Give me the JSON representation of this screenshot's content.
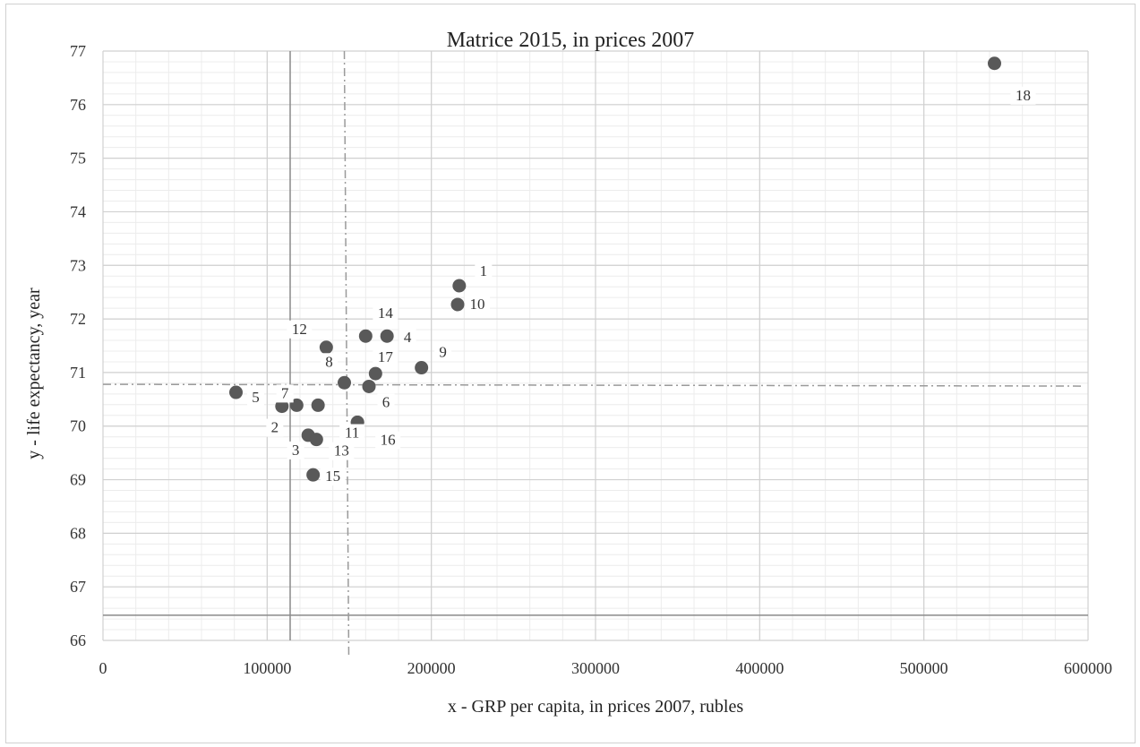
{
  "chart_data": {
    "type": "scatter",
    "title": "Matrice 2015, in prices 2007",
    "xlabel": "x - GRP per capita, in prices 2007, rubles",
    "ylabel": "y - life expectancy, year",
    "xlim": [
      0,
      600000
    ],
    "ylim": [
      66,
      77
    ],
    "xticks": [
      "0",
      "100000",
      "200000",
      "300000",
      "400000",
      "500000",
      "600000"
    ],
    "yticks": [
      "66",
      "67",
      "68",
      "69",
      "70",
      "71",
      "72",
      "73",
      "74",
      "75",
      "76",
      "77"
    ],
    "grid": true,
    "marker_color": "#595959",
    "reference_lines": {
      "vertical_solid_x": 114000,
      "vertical_dashdot_x": 147000,
      "horizontal_solid_y": 66.47,
      "horizontal_dashdot_y": 70.78
    },
    "points": [
      {
        "label": "1",
        "x": 217000,
        "y": 72.62
      },
      {
        "label": "10",
        "x": 216000,
        "y": 72.27
      },
      {
        "label": "12",
        "x": 136000,
        "y": 71.47
      },
      {
        "label": "14",
        "x": 160000,
        "y": 71.68
      },
      {
        "label": "4",
        "x": 173000,
        "y": 71.68
      },
      {
        "label": "9",
        "x": 194000,
        "y": 71.09
      },
      {
        "label": "17",
        "x": 166000,
        "y": 70.98
      },
      {
        "label": "8",
        "x": 147000,
        "y": 70.81
      },
      {
        "label": "7",
        "x": 131000,
        "y": 70.39
      },
      {
        "label": "6",
        "x": 162000,
        "y": 70.74
      },
      {
        "label": "5",
        "x": 81000,
        "y": 70.63
      },
      {
        "label": "2",
        "x": 109000,
        "y": 70.37
      },
      {
        "label": "",
        "x": 118000,
        "y": 70.39
      },
      {
        "label": "11",
        "x": 155000,
        "y": 70.07
      },
      {
        "label": "3",
        "x": 125000,
        "y": 69.83
      },
      {
        "label": "13",
        "x": 130000,
        "y": 69.75
      },
      {
        "label": "16",
        "x": 155000,
        "y": 70.07
      },
      {
        "label": "15",
        "x": 128000,
        "y": 69.09
      },
      {
        "label": "18",
        "x": 543000,
        "y": 76.77
      }
    ]
  }
}
